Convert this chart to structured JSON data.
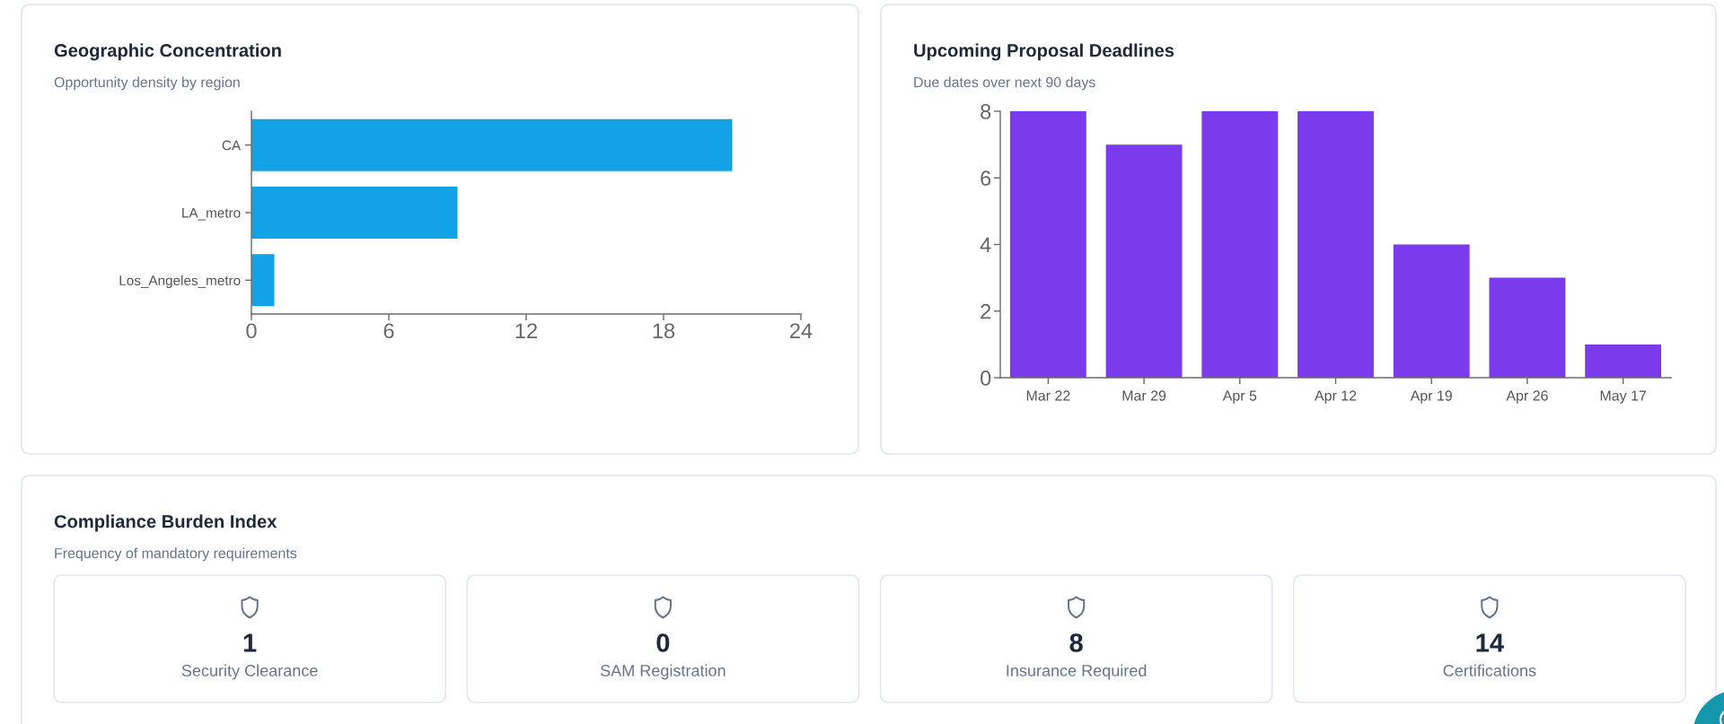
{
  "chart_data": [
    {
      "type": "bar",
      "orientation": "horizontal",
      "title": "Geographic Concentration",
      "subtitle": "Opportunity density by region",
      "categories": [
        "CA",
        "LA_metro",
        "Los_Angeles_metro"
      ],
      "values": [
        21,
        9,
        1
      ],
      "color": "#14a2e6",
      "xlim": [
        0,
        24
      ],
      "xticks": [
        0,
        6,
        12,
        18,
        24
      ]
    },
    {
      "type": "bar",
      "title": "Upcoming Proposal Deadlines",
      "subtitle": "Due dates over next 90 days",
      "categories": [
        "Mar 22",
        "Mar 29",
        "Apr 5",
        "Apr 12",
        "Apr 19",
        "Apr 26",
        "May 17"
      ],
      "values": [
        8,
        7,
        8,
        8,
        4,
        3,
        1
      ],
      "color": "#7c3aed",
      "ylim": [
        0,
        8
      ],
      "yticks": [
        0,
        2,
        4,
        6,
        8
      ]
    },
    {
      "type": "other",
      "title": "Compliance Burden Index",
      "subtitle": "Frequency of mandatory requirements",
      "categories": [
        "Security Clearance",
        "SAM Registration",
        "Insurance Required",
        "Certifications"
      ],
      "values": [
        1,
        0,
        8,
        14
      ],
      "data_labels": true
    }
  ]
}
